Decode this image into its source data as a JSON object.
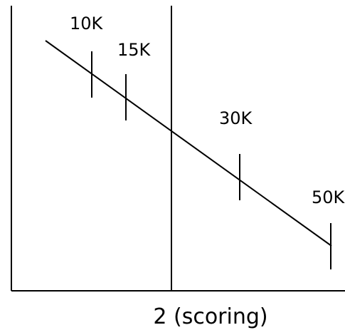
{
  "diagram": {
    "xlabel": "2 (scoring)",
    "markers": [
      {
        "label": "10K"
      },
      {
        "label": "15K"
      },
      {
        "label": "30K"
      },
      {
        "label": "50K"
      }
    ]
  }
}
